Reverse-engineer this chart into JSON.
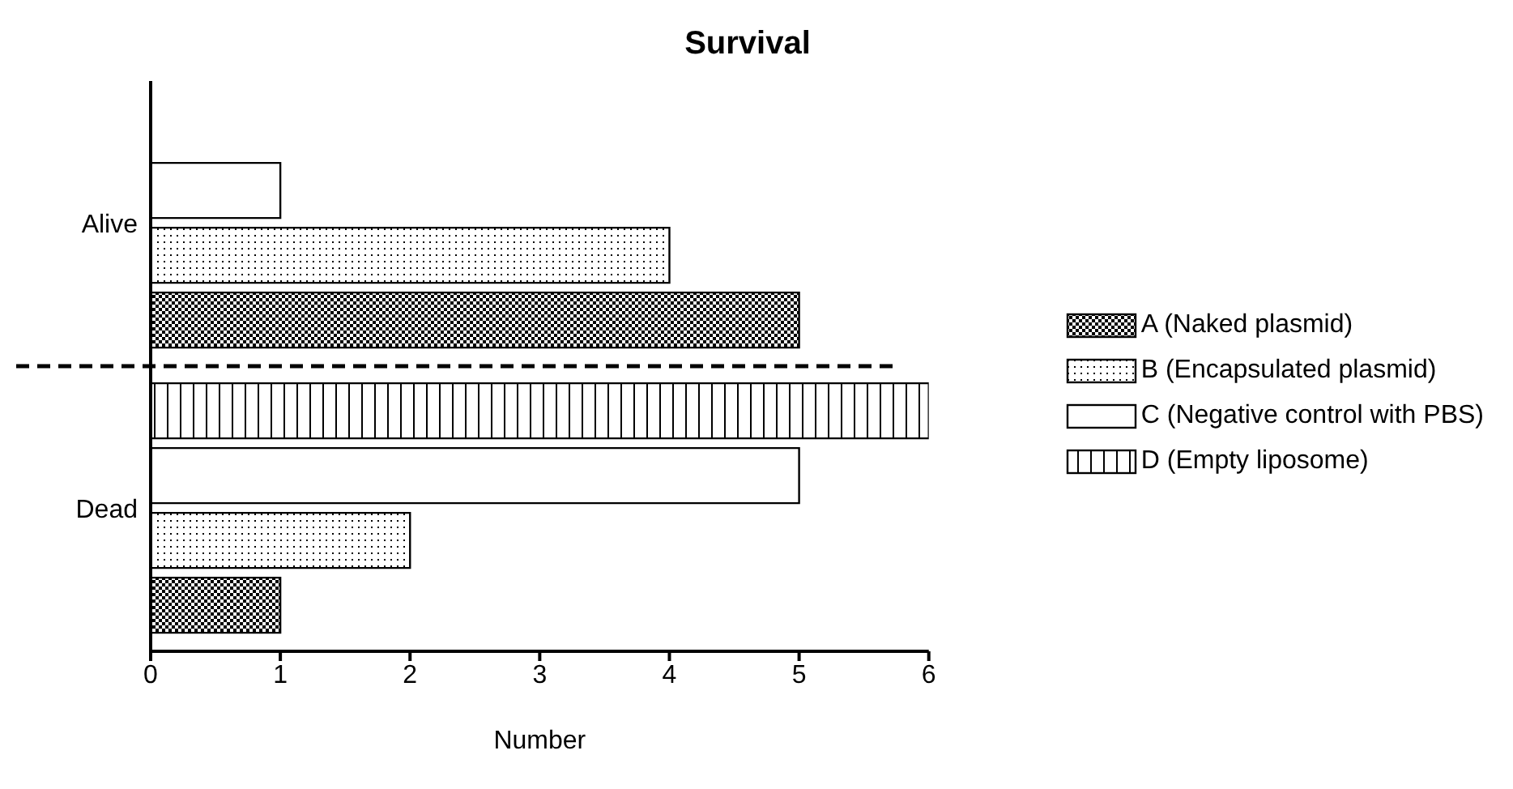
{
  "chart_data": {
    "type": "bar",
    "orientation": "horizontal",
    "title": "Survival",
    "xlabel": "Number",
    "categories": [
      "Alive",
      "Dead"
    ],
    "series": [
      {
        "name": "A (Naked plasmid)",
        "color": "#000000",
        "values": [
          5,
          1
        ]
      },
      {
        "name": "B (Encapsulated plasmid)",
        "color": "#000000",
        "values": [
          4,
          2
        ]
      },
      {
        "name": "C (Negative control with PBS)",
        "color": "#000000",
        "values": [
          1,
          5
        ]
      },
      {
        "name": "D (Empty liposome)",
        "color": "#000000",
        "values": [
          0,
          6
        ]
      }
    ],
    "xlim": [
      0,
      6
    ],
    "xticks": [
      0,
      1,
      2,
      3,
      4,
      5,
      6
    ],
    "grid": false,
    "legend": "right"
  }
}
